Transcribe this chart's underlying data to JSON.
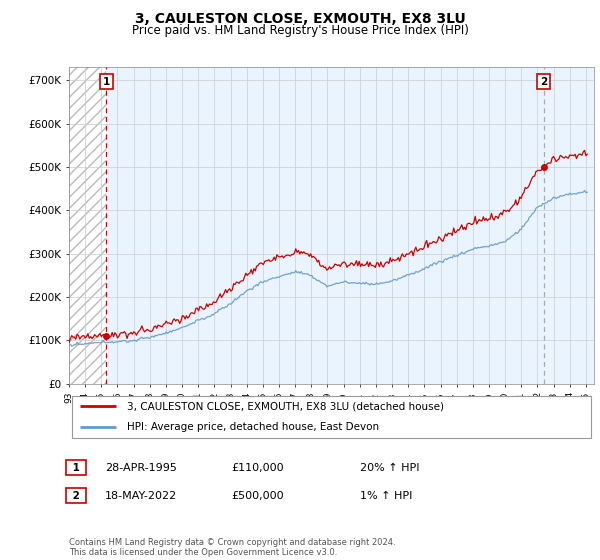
{
  "title": "3, CAULESTON CLOSE, EXMOUTH, EX8 3LU",
  "subtitle": "Price paid vs. HM Land Registry's House Price Index (HPI)",
  "yticks": [
    0,
    100000,
    200000,
    300000,
    400000,
    500000,
    600000,
    700000
  ],
  "ytick_labels": [
    "£0",
    "£100K",
    "£200K",
    "£300K",
    "£400K",
    "£500K",
    "£600K",
    "£700K"
  ],
  "xlim_start": 1993.0,
  "xlim_end": 2025.5,
  "ylim": [
    0,
    730000
  ],
  "transaction1_date": 1995.32,
  "transaction1_price": 110000,
  "transaction1_label": "1",
  "transaction2_date": 2022.38,
  "transaction2_price": 500000,
  "transaction2_label": "2",
  "legend_line1": "3, CAULESTON CLOSE, EXMOUTH, EX8 3LU (detached house)",
  "legend_line2": "HPI: Average price, detached house, East Devon",
  "annotation1_date": "28-APR-1995",
  "annotation1_price": "£110,000",
  "annotation1_hpi": "20% ↑ HPI",
  "annotation2_date": "18-MAY-2022",
  "annotation2_price": "£500,000",
  "annotation2_hpi": "1% ↑ HPI",
  "footer": "Contains HM Land Registry data © Crown copyright and database right 2024.\nThis data is licensed under the Open Government Licence v3.0.",
  "price_line_color": "#cc0000",
  "hpi_line_color": "#6699cc",
  "vline1_color": "#dd0000",
  "vline2_color": "#aaaaaa",
  "point_color": "#cc0000",
  "grid_color": "#cccccc",
  "annotation_box_color": "#cc0000",
  "bg_blue": "#ddeeff",
  "bg_hatch": "white"
}
